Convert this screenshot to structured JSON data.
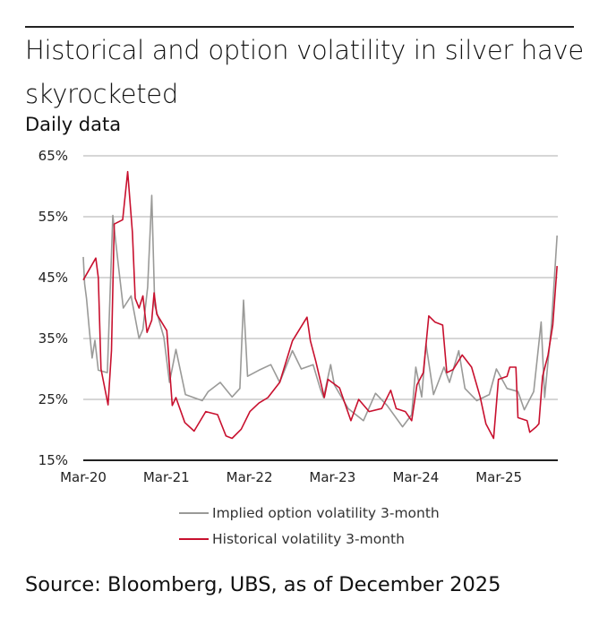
{
  "title": "Historical and option volatility in silver have skyrocketed",
  "subtitle": "Daily data",
  "source": "Source: Bloomberg, UBS, as of December 2025",
  "colors": {
    "implied": "#9a9a98",
    "historical": "#c8102e",
    "grid": "#bdbdbd",
    "axis": "#222222"
  },
  "chart_data": {
    "type": "line",
    "title": "Historical and option volatility in silver have skyrocketed",
    "subtitle": "Daily data",
    "xlabel": "",
    "ylabel": "",
    "ylim": [
      15,
      65
    ],
    "yticks": [
      "65%",
      "55%",
      "45%",
      "35%",
      "25%",
      "15%"
    ],
    "ytick_values": [
      65,
      55,
      45,
      35,
      25,
      15
    ],
    "xticks": [
      "Mar-20",
      "Mar-21",
      "Mar-22",
      "Mar-23",
      "Mar-24",
      "Mar-25"
    ],
    "xtick_dates": [
      "2020-03-01",
      "2021-03-01",
      "2022-03-01",
      "2023-03-01",
      "2024-03-01",
      "2025-03-01"
    ],
    "xlim": [
      "2020-03-01",
      "2025-11-15"
    ],
    "grid": true,
    "legend_placement": "bottom",
    "series": [
      {
        "name": "Implied option volatility 3-month",
        "color": "#9a9a98",
        "points": [
          [
            "2020-03-01",
            48.4
          ],
          [
            "2020-03-07",
            44
          ],
          [
            "2020-03-15",
            41.6
          ],
          [
            "2020-03-27",
            36.7
          ],
          [
            "2020-04-09",
            31.8
          ],
          [
            "2020-04-21",
            34.7
          ],
          [
            "2020-05-06",
            29.8
          ],
          [
            "2020-06-15",
            29.4
          ],
          [
            "2020-06-27",
            42.6
          ],
          [
            "2020-07-09",
            55.2
          ],
          [
            "2020-08-01",
            47.4
          ],
          [
            "2020-08-24",
            40
          ],
          [
            "2020-09-27",
            42
          ],
          [
            "2020-11-01",
            35
          ],
          [
            "2020-11-18",
            36.5
          ],
          [
            "2020-12-09",
            43.4
          ],
          [
            "2020-12-27",
            58.5
          ],
          [
            "2021-01-09",
            40.5
          ],
          [
            "2021-02-18",
            35.2
          ],
          [
            "2021-03-15",
            27.8
          ],
          [
            "2021-04-12",
            33.2
          ],
          [
            "2021-05-24",
            25.8
          ],
          [
            "2021-08-06",
            24.8
          ],
          [
            "2021-09-01",
            26.3
          ],
          [
            "2021-10-24",
            27.8
          ],
          [
            "2021-12-15",
            25.4
          ],
          [
            "2022-01-18",
            26.8
          ],
          [
            "2022-02-03",
            41.3
          ],
          [
            "2022-02-21",
            28.8
          ],
          [
            "2022-04-12",
            29.8
          ],
          [
            "2022-06-03",
            30.7
          ],
          [
            "2022-07-12",
            27.8
          ],
          [
            "2022-09-06",
            33
          ],
          [
            "2022-10-15",
            30
          ],
          [
            "2022-12-06",
            30.7
          ],
          [
            "2023-01-06",
            26.8
          ],
          [
            "2023-01-21",
            25.3
          ],
          [
            "2023-02-21",
            30.7
          ],
          [
            "2023-03-09",
            27.4
          ],
          [
            "2023-05-09",
            23.5
          ],
          [
            "2023-07-15",
            21.5
          ],
          [
            "2023-09-06",
            26
          ],
          [
            "2023-10-27",
            24
          ],
          [
            "2024-01-03",
            20.5
          ],
          [
            "2024-02-12",
            22.5
          ],
          [
            "2024-03-01",
            30.3
          ],
          [
            "2024-03-27",
            25.4
          ],
          [
            "2024-04-15",
            34.1
          ],
          [
            "2024-05-18",
            25.8
          ],
          [
            "2024-07-03",
            30.3
          ],
          [
            "2024-07-27",
            27.8
          ],
          [
            "2024-09-06",
            33
          ],
          [
            "2024-10-03",
            26.8
          ],
          [
            "2024-11-24",
            24.8
          ],
          [
            "2025-01-18",
            25.8
          ],
          [
            "2025-02-18",
            30
          ],
          [
            "2025-04-06",
            26.8
          ],
          [
            "2025-05-24",
            26.3
          ],
          [
            "2025-06-21",
            23.3
          ],
          [
            "2025-08-01",
            26.3
          ],
          [
            "2025-09-03",
            37.7
          ],
          [
            "2025-09-18",
            25.3
          ],
          [
            "2025-10-18",
            37.2
          ],
          [
            "2025-11-12",
            51.9
          ]
        ]
      },
      {
        "name": "Historical volatility 3-month",
        "color": "#c8102e",
        "points": [
          [
            "2020-03-01",
            44.6
          ],
          [
            "2020-04-25",
            48.2
          ],
          [
            "2020-05-06",
            45
          ],
          [
            "2020-05-18",
            30
          ],
          [
            "2020-06-18",
            24.1
          ],
          [
            "2020-07-03",
            33
          ],
          [
            "2020-07-15",
            53.8
          ],
          [
            "2020-08-21",
            54.5
          ],
          [
            "2020-09-12",
            62.4
          ],
          [
            "2020-10-03",
            52.4
          ],
          [
            "2020-10-15",
            41.6
          ],
          [
            "2020-11-01",
            40
          ],
          [
            "2020-11-18",
            42
          ],
          [
            "2020-12-06",
            36
          ],
          [
            "2020-12-27",
            38
          ],
          [
            "2021-01-06",
            42.5
          ],
          [
            "2021-01-18",
            39
          ],
          [
            "2021-03-03",
            36.3
          ],
          [
            "2021-03-27",
            24
          ],
          [
            "2021-04-12",
            25.3
          ],
          [
            "2021-05-21",
            21.2
          ],
          [
            "2021-07-01",
            19.8
          ],
          [
            "2021-08-21",
            23
          ],
          [
            "2021-10-12",
            22.5
          ],
          [
            "2021-11-18",
            19
          ],
          [
            "2021-12-15",
            18.6
          ],
          [
            "2022-01-24",
            20.1
          ],
          [
            "2022-03-03",
            23
          ],
          [
            "2022-04-12",
            24.4
          ],
          [
            "2022-05-21",
            25.3
          ],
          [
            "2022-07-12",
            27.8
          ],
          [
            "2022-09-06",
            34.6
          ],
          [
            "2022-11-09",
            38.5
          ],
          [
            "2022-11-24",
            34.6
          ],
          [
            "2022-12-18",
            31.2
          ],
          [
            "2023-01-24",
            25.3
          ],
          [
            "2023-02-09",
            28.3
          ],
          [
            "2023-04-01",
            26.9
          ],
          [
            "2023-05-21",
            21.5
          ],
          [
            "2023-06-24",
            25
          ],
          [
            "2023-08-09",
            23
          ],
          [
            "2023-10-03",
            23.5
          ],
          [
            "2023-11-12",
            26.5
          ],
          [
            "2023-12-06",
            23.5
          ],
          [
            "2024-01-15",
            23
          ],
          [
            "2024-02-12",
            21.5
          ],
          [
            "2024-03-06",
            27.4
          ],
          [
            "2024-04-03",
            29.4
          ],
          [
            "2024-04-27",
            38.7
          ],
          [
            "2024-05-24",
            37.7
          ],
          [
            "2024-06-27",
            37.2
          ],
          [
            "2024-07-15",
            29.4
          ],
          [
            "2024-08-12",
            29.9
          ],
          [
            "2024-09-21",
            32.3
          ],
          [
            "2024-11-01",
            30.3
          ],
          [
            "2024-12-09",
            25.4
          ],
          [
            "2025-01-03",
            21
          ],
          [
            "2025-02-06",
            18.6
          ],
          [
            "2025-02-27",
            28.3
          ],
          [
            "2025-04-06",
            28.8
          ],
          [
            "2025-04-18",
            30.3
          ],
          [
            "2025-05-15",
            30.3
          ],
          [
            "2025-05-24",
            22
          ],
          [
            "2025-07-03",
            21.5
          ],
          [
            "2025-07-15",
            19.6
          ],
          [
            "2025-08-12",
            20.5
          ],
          [
            "2025-08-24",
            21
          ],
          [
            "2025-09-09",
            28.8
          ],
          [
            "2025-10-03",
            32.3
          ],
          [
            "2025-10-24",
            37.2
          ],
          [
            "2025-11-12",
            46.9
          ]
        ]
      }
    ]
  }
}
